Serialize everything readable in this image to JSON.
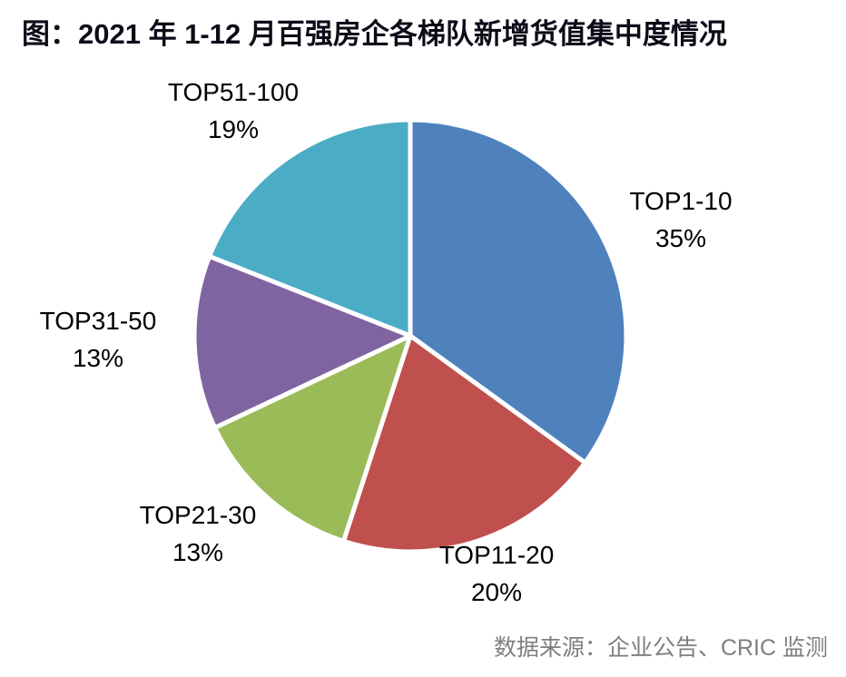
{
  "title": "图：2021 年 1-12 月百强房企各梯队新增货值集中度情况",
  "source": "数据来源：企业公告、CRIC 监测",
  "chart_data": {
    "type": "pie",
    "title": "2021 年 1-12 月百强房企各梯队新增货值集中度情况",
    "start_angle_deg": 0,
    "direction": "clockwise",
    "labels_position": "outside",
    "legend_position": "none",
    "slices": [
      {
        "label": "TOP1-10",
        "value": 35,
        "pct_label": "35%",
        "color": "#4f81bd"
      },
      {
        "label": "TOP11-20",
        "value": 20,
        "pct_label": "20%",
        "color": "#c0504d"
      },
      {
        "label": "TOP21-30",
        "value": 13,
        "pct_label": "13%",
        "color": "#9bbb59"
      },
      {
        "label": "TOP31-50",
        "value": 13,
        "pct_label": "13%",
        "color": "#8064a2"
      },
      {
        "label": "TOP51-100",
        "value": 19,
        "pct_label": "19%",
        "color": "#4bacc6"
      }
    ]
  }
}
